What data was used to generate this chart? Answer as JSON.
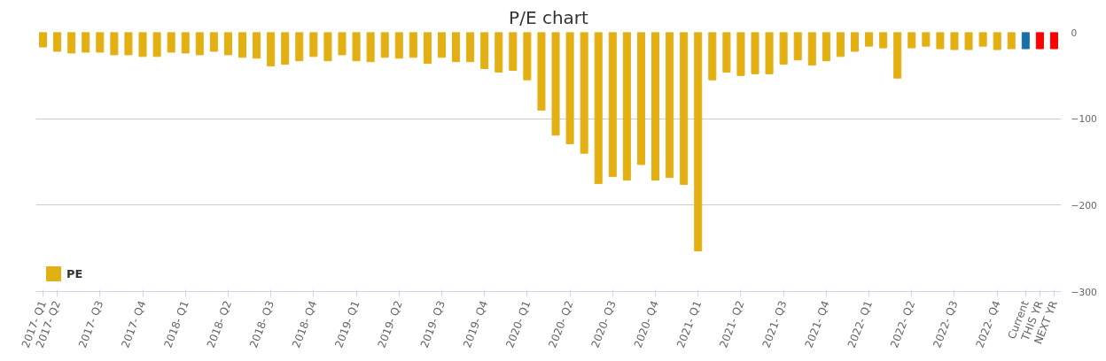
{
  "chart_data": {
    "type": "bar",
    "title": "P/E chart",
    "categories": [
      "2017- Q1",
      "2017- Q2",
      null,
      null,
      "2017- Q3",
      null,
      null,
      "2017- Q4",
      null,
      null,
      "2018- Q1",
      null,
      null,
      "2018- Q2",
      null,
      null,
      "2018- Q3",
      null,
      null,
      "2018- Q4",
      null,
      null,
      "2019- Q1",
      null,
      null,
      "2019- Q2",
      null,
      null,
      "2019- Q3",
      null,
      null,
      "2019- Q4",
      null,
      null,
      "2020- Q1",
      null,
      null,
      "2020- Q2",
      null,
      null,
      "2020- Q3",
      null,
      null,
      "2020- Q4",
      null,
      null,
      "2021- Q1",
      null,
      null,
      "2021- Q2",
      null,
      null,
      "2021- Q3",
      null,
      null,
      "2021- Q4",
      null,
      null,
      "2022- Q1",
      null,
      null,
      "2022- Q2",
      null,
      null,
      "2022- Q3",
      null,
      null,
      "2022- Q4",
      null,
      "Current",
      "THIS YR",
      "NEXT YR"
    ],
    "series": [
      {
        "name": "PE",
        "color": "#e3b014",
        "colors": [
          null,
          null,
          null,
          null,
          null,
          null,
          null,
          null,
          null,
          null,
          null,
          null,
          null,
          null,
          null,
          null,
          null,
          null,
          null,
          null,
          null,
          null,
          null,
          null,
          null,
          null,
          null,
          null,
          null,
          null,
          null,
          null,
          null,
          null,
          null,
          null,
          null,
          null,
          null,
          null,
          null,
          null,
          null,
          null,
          null,
          null,
          null,
          null,
          null,
          null,
          null,
          null,
          null,
          null,
          null,
          null,
          null,
          null,
          null,
          null,
          null,
          null,
          null,
          null,
          null,
          null,
          null,
          null,
          null,
          "#1a6fa8",
          "#ff0000",
          "#ff0000"
        ],
        "values": [
          -17,
          -22,
          -24,
          -23,
          -23,
          -26,
          -26,
          -28,
          -28,
          -23,
          -24,
          -26,
          -22,
          -26,
          -29,
          -30,
          -39,
          -37,
          -33,
          -28,
          -33,
          -26,
          -33,
          -34,
          -29,
          -30,
          -29,
          -36,
          -29,
          -34,
          -34,
          -42,
          -46,
          -44,
          -55,
          -90,
          -119,
          -129,
          -140,
          -175,
          -167,
          -171,
          -153,
          -171,
          -168,
          -176,
          -253,
          -55,
          -46,
          -50,
          -48,
          -48,
          -37,
          -32,
          -38,
          -33,
          -28,
          -22,
          -16,
          -18,
          -53,
          -18,
          -16,
          -19,
          -20,
          -20,
          -16,
          -20,
          -19,
          -19,
          -19,
          -19
        ]
      }
    ],
    "ylim": [
      -300,
      0
    ],
    "yticks": [
      -300,
      -200,
      -100,
      0
    ],
    "grid": "y",
    "legend": "bottom left"
  }
}
